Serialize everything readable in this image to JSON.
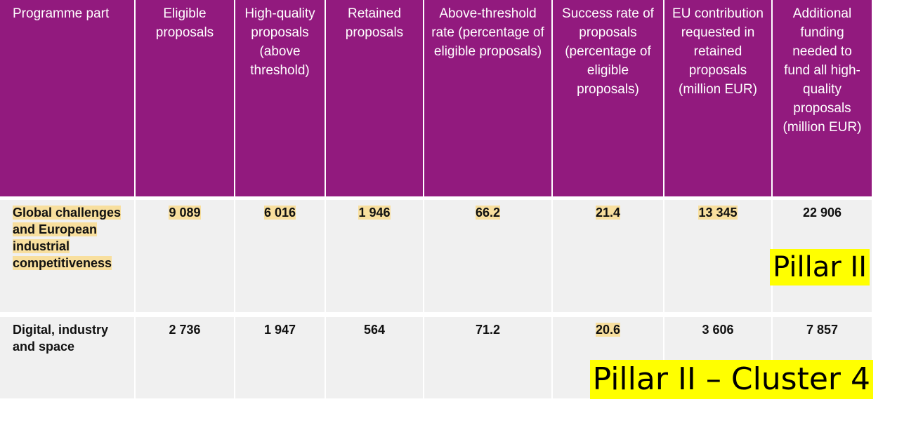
{
  "table": {
    "headers": [
      "Programme part",
      "Eligible proposals",
      "High-quality proposals (above threshold)",
      "Retained proposals",
      "Above-threshold rate (percentage of eligible proposals)",
      "Success rate of proposals (percentage of eligible proposals)",
      "EU contribution requested in retained proposals (million EUR)",
      "Additional funding needed to fund all high-quality proposals (million EUR)"
    ],
    "rows": [
      [
        "Global challenges and European industrial competitiveness",
        "9 089",
        "6 016",
        "1 946",
        "66.2",
        "21.4",
        "13 345",
        "22 906"
      ],
      [
        "Digital, industry and space",
        "2 736",
        "1 947",
        "564",
        "71.2",
        "20.6",
        "3 606",
        "7 857"
      ]
    ]
  },
  "annotations": [
    "Pillar II",
    "Pillar II – Cluster 4"
  ]
}
